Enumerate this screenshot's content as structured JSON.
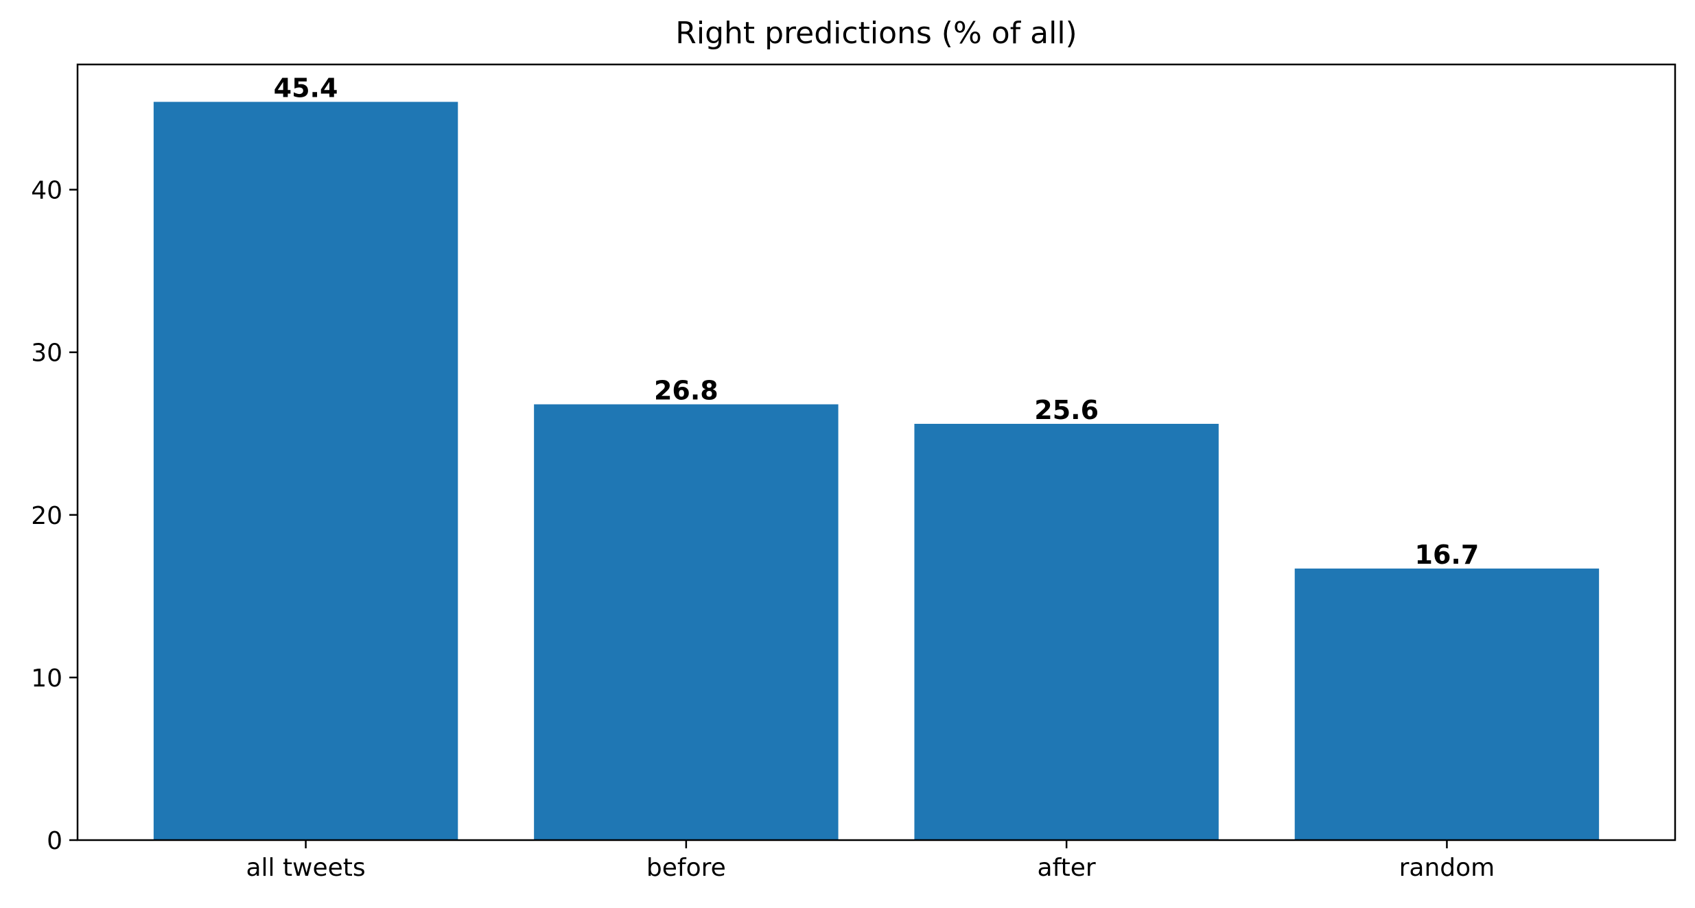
{
  "chart_data": {
    "type": "bar",
    "title": "Right predictions (% of all)",
    "xlabel": "",
    "ylabel": "",
    "categories": [
      "all tweets",
      "before",
      "after",
      "random"
    ],
    "values": [
      45.4,
      26.8,
      25.6,
      16.7
    ],
    "value_labels": [
      "45.4",
      "26.8",
      "25.6",
      "16.7"
    ],
    "ylim": [
      0,
      47.7
    ],
    "yticks": [
      0,
      10,
      20,
      30,
      40
    ],
    "ytick_labels": [
      "0",
      "10",
      "20",
      "30",
      "40"
    ],
    "bar_color": "#1f77b4",
    "grid": false,
    "legend": "none"
  }
}
